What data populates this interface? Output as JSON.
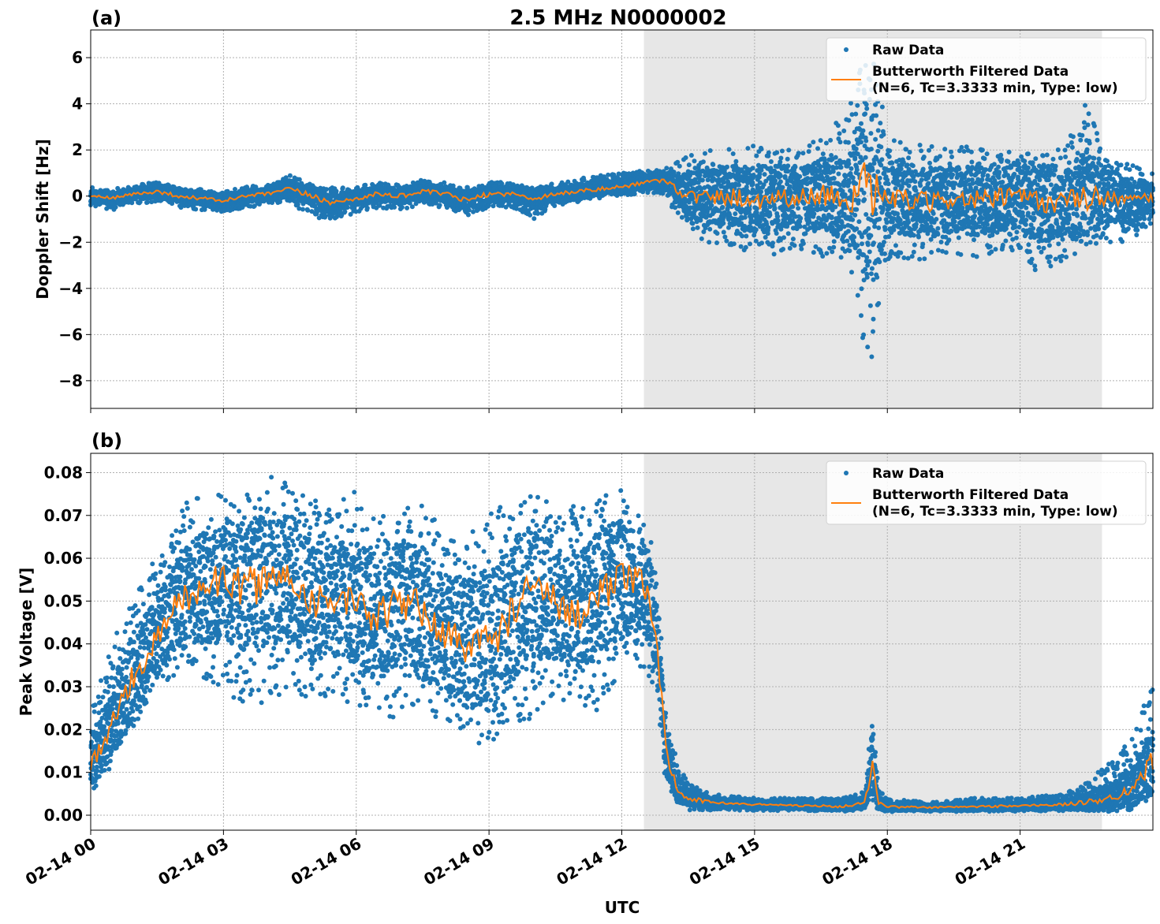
{
  "figure": {
    "title": "2.5 MHz N0000002",
    "xlabel": "UTC",
    "x_tick_labels": [
      "02-14 00",
      "02-14 03",
      "02-14 06",
      "02-14 09",
      "02-14 12",
      "02-14 15",
      "02-14 18",
      "02-14 21"
    ]
  },
  "colors": {
    "raw": "#1f77b4",
    "filtered": "#ff7f0e",
    "shade": "#e7e7e7",
    "grid": "#b0b0b0"
  },
  "chart_data": [
    {
      "type": "scatter",
      "panel_label": "(a)",
      "ylabel": "Doppler Shift [Hz]",
      "xlim_hours": [
        0,
        24
      ],
      "ylim": [
        -9.2,
        7.2
      ],
      "y_ticks": [
        6,
        4,
        2,
        0,
        -2,
        -4,
        -6,
        -8
      ],
      "y_tick_labels": [
        "6",
        "4",
        "2",
        "0",
        "−2",
        "−4",
        "−6",
        "−8"
      ],
      "grid": true,
      "legend_position": "top-right",
      "legend": [
        "Raw Data",
        "Butterworth Filtered Data",
        "(N=6, Tc=3.3333 min, Type: low)"
      ],
      "shaded_region_hours": [
        12.5,
        22.85
      ],
      "series": [
        {
          "name": "Raw Data",
          "style": "points",
          "x": [
            0,
            0.5,
            1,
            1.5,
            2,
            2.5,
            3,
            3.5,
            4,
            4.5,
            5,
            5.5,
            6,
            6.5,
            7,
            7.5,
            8,
            8.5,
            9,
            9.5,
            10,
            10.5,
            11,
            11.5,
            12,
            12.5,
            13,
            13.25,
            13.5,
            14,
            14.5,
            15,
            15.5,
            16,
            16.5,
            17,
            17.3,
            17.5,
            17.6,
            17.7,
            17.9,
            18,
            18.5,
            19,
            19.5,
            20,
            20.5,
            21,
            21.5,
            22,
            22.5,
            23,
            23.5,
            24
          ],
          "y_mid": [
            0,
            -0.1,
            0.1,
            0.2,
            0,
            -0.1,
            -0.2,
            0,
            0.1,
            0.3,
            0,
            -0.3,
            -0.1,
            0.1,
            0,
            0.2,
            0.1,
            -0.2,
            0.1,
            0.1,
            -0.1,
            0.1,
            0.2,
            0.3,
            0.4,
            0.6,
            0.7,
            0.3,
            0,
            -0.1,
            0,
            -0.2,
            0,
            -0.1,
            0.1,
            -0.1,
            0,
            0.3,
            -0.3,
            0.2,
            -0.5,
            0,
            -0.2,
            -0.3,
            -0.1,
            -0.2,
            -0.1,
            0,
            -0.3,
            -0.2,
            -0.1,
            0,
            -0.2,
            -0.1
          ],
          "y_low": [
            -0.4,
            -0.6,
            -0.3,
            -0.3,
            -0.5,
            -0.6,
            -0.7,
            -0.5,
            -0.4,
            -0.3,
            -0.9,
            -1.1,
            -0.7,
            -0.5,
            -0.6,
            -0.4,
            -0.5,
            -0.9,
            -0.5,
            -0.5,
            -1.0,
            -0.4,
            -0.3,
            -0.1,
            0,
            0.1,
            0.1,
            -1.0,
            -1.5,
            -2.2,
            -2.3,
            -2.5,
            -2.6,
            -2.3,
            -2.6,
            -2.7,
            -3.8,
            -8.4,
            -6.5,
            -7.5,
            -3.5,
            -2.8,
            -2.8,
            -2.7,
            -2.6,
            -2.7,
            -2.6,
            -2.6,
            -3.6,
            -2.7,
            -2.5,
            -2.2,
            -1.9,
            -1.3
          ],
          "y_high": [
            0.4,
            0.3,
            0.5,
            0.6,
            0.4,
            0.3,
            0.2,
            0.4,
            0.5,
            0.9,
            0.5,
            0.4,
            0.4,
            0.6,
            0.5,
            0.7,
            0.6,
            0.4,
            0.7,
            0.6,
            0.4,
            0.6,
            0.8,
            0.9,
            1.0,
            1.1,
            1.2,
            1.5,
            1.8,
            2.0,
            2.1,
            2.2,
            2.2,
            2.3,
            2.5,
            3.5,
            4.8,
            6.5,
            5.5,
            6.2,
            3.8,
            2.5,
            2.3,
            2.2,
            2.1,
            2.3,
            2.2,
            2.1,
            2.4,
            2.0,
            4.2,
            1.6,
            1.4,
            1.0
          ]
        },
        {
          "name": "Butterworth Filtered Data",
          "style": "line",
          "x": [
            0,
            0.5,
            1,
            1.5,
            2,
            2.5,
            3,
            3.5,
            4,
            4.5,
            5,
            5.5,
            6,
            6.5,
            7,
            7.5,
            8,
            8.5,
            9,
            9.5,
            10,
            10.5,
            11,
            11.5,
            12,
            12.5,
            13,
            13.25,
            13.5,
            14,
            14.5,
            15,
            15.5,
            16,
            16.5,
            17,
            17.3,
            17.5,
            17.6,
            17.7,
            17.9,
            18,
            18.5,
            19,
            19.5,
            20,
            20.5,
            21,
            21.5,
            22,
            22.5,
            23,
            23.5,
            24
          ],
          "y": [
            0,
            -0.1,
            0.1,
            0.2,
            0,
            -0.1,
            -0.2,
            0,
            0.1,
            0.3,
            0,
            -0.3,
            -0.1,
            0.1,
            0,
            0.2,
            0.1,
            -0.2,
            0.1,
            0.1,
            -0.1,
            0.1,
            0.2,
            0.3,
            0.4,
            0.6,
            0.7,
            0.3,
            0,
            -0.1,
            0,
            -0.2,
            0,
            -0.1,
            0.1,
            -0.1,
            0,
            0.3,
            -0.3,
            0.2,
            -0.5,
            0,
            -0.2,
            -0.3,
            -0.1,
            -0.2,
            -0.1,
            0,
            -0.3,
            -0.2,
            -0.1,
            0,
            -0.2,
            -0.1
          ]
        }
      ]
    },
    {
      "type": "scatter",
      "panel_label": "(b)",
      "ylabel": "Peak Voltage [V]",
      "xlim_hours": [
        0,
        24
      ],
      "ylim": [
        -0.0035,
        0.0845
      ],
      "y_ticks": [
        0.08,
        0.07,
        0.06,
        0.05,
        0.04,
        0.03,
        0.02,
        0.01,
        0.0
      ],
      "y_tick_labels": [
        "0.08",
        "0.07",
        "0.06",
        "0.05",
        "0.04",
        "0.03",
        "0.02",
        "0.01",
        "0.00"
      ],
      "grid": true,
      "legend_position": "top-right",
      "legend": [
        "Raw Data",
        "Butterworth Filtered Data",
        "(N=6, Tc=3.3333 min, Type: low)"
      ],
      "shaded_region_hours": [
        12.5,
        22.85
      ],
      "series": [
        {
          "name": "Raw Data",
          "style": "points",
          "x": [
            0,
            0.25,
            0.5,
            0.75,
            1,
            1.5,
            2,
            2.5,
            3,
            3.5,
            4,
            4.5,
            5,
            5.5,
            6,
            6.5,
            7,
            7.5,
            8,
            8.5,
            9,
            9.5,
            10,
            10.5,
            11,
            11.5,
            12,
            12.5,
            12.75,
            13,
            13.25,
            13.5,
            14,
            15,
            16,
            17,
            17.5,
            17.65,
            17.8,
            18,
            19,
            20,
            21,
            22,
            22.5,
            23,
            23.5,
            23.75,
            24
          ],
          "y_mid": [
            0.012,
            0.016,
            0.022,
            0.028,
            0.033,
            0.041,
            0.05,
            0.053,
            0.055,
            0.053,
            0.055,
            0.056,
            0.05,
            0.051,
            0.048,
            0.046,
            0.05,
            0.048,
            0.042,
            0.04,
            0.04,
            0.047,
            0.053,
            0.05,
            0.047,
            0.052,
            0.055,
            0.054,
            0.045,
            0.015,
            0.006,
            0.004,
            0.003,
            0.0025,
            0.0023,
            0.002,
            0.003,
            0.012,
            0.003,
            0.002,
            0.0018,
            0.002,
            0.0022,
            0.0025,
            0.003,
            0.004,
            0.006,
            0.009,
            0.013
          ],
          "y_low": [
            0.005,
            0.008,
            0.012,
            0.016,
            0.021,
            0.028,
            0.034,
            0.032,
            0.03,
            0.024,
            0.025,
            0.03,
            0.026,
            0.028,
            0.025,
            0.022,
            0.022,
            0.024,
            0.019,
            0.017,
            0.016,
            0.02,
            0.022,
            0.027,
            0.026,
            0.024,
            0.03,
            0.034,
            0.03,
            0.006,
            0.002,
            0.0012,
            0.0012,
            0.0011,
            0.001,
            0.0009,
            0.001,
            0.003,
            0.001,
            0.0008,
            0.0008,
            0.0008,
            0.0009,
            0.001,
            0.0012,
            0.0015,
            0.002,
            0.003,
            0.005
          ],
          "y_high": [
            0.025,
            0.032,
            0.04,
            0.048,
            0.055,
            0.06,
            0.072,
            0.075,
            0.076,
            0.075,
            0.08,
            0.077,
            0.074,
            0.073,
            0.078,
            0.07,
            0.071,
            0.074,
            0.065,
            0.068,
            0.07,
            0.074,
            0.075,
            0.073,
            0.072,
            0.075,
            0.076,
            0.071,
            0.062,
            0.026,
            0.012,
            0.008,
            0.005,
            0.004,
            0.004,
            0.004,
            0.006,
            0.027,
            0.006,
            0.004,
            0.003,
            0.004,
            0.004,
            0.005,
            0.008,
            0.012,
            0.018,
            0.024,
            0.034
          ]
        },
        {
          "name": "Butterworth Filtered Data",
          "style": "line",
          "x": [
            0,
            0.25,
            0.5,
            0.75,
            1,
            1.5,
            2,
            2.5,
            3,
            3.5,
            4,
            4.5,
            5,
            5.5,
            6,
            6.5,
            7,
            7.5,
            8,
            8.5,
            9,
            9.5,
            10,
            10.5,
            11,
            11.5,
            12,
            12.5,
            12.75,
            13,
            13.25,
            13.5,
            14,
            15,
            16,
            17,
            17.5,
            17.65,
            17.8,
            18,
            19,
            20,
            21,
            22,
            22.5,
            23,
            23.5,
            23.75,
            24
          ],
          "y": [
            0.012,
            0.016,
            0.022,
            0.028,
            0.033,
            0.041,
            0.05,
            0.053,
            0.055,
            0.053,
            0.055,
            0.056,
            0.05,
            0.051,
            0.048,
            0.046,
            0.05,
            0.048,
            0.042,
            0.04,
            0.04,
            0.047,
            0.053,
            0.05,
            0.047,
            0.052,
            0.055,
            0.054,
            0.045,
            0.015,
            0.006,
            0.004,
            0.003,
            0.0025,
            0.0023,
            0.002,
            0.003,
            0.012,
            0.003,
            0.002,
            0.0018,
            0.002,
            0.0022,
            0.0025,
            0.003,
            0.004,
            0.006,
            0.009,
            0.013
          ]
        }
      ]
    }
  ]
}
